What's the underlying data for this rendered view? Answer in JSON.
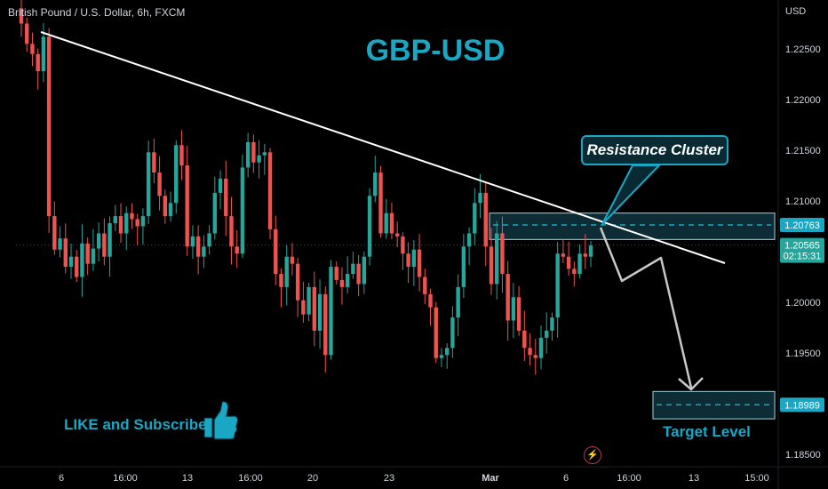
{
  "header": {
    "symbol_line": "British Pound / U.S. Dollar, 6h, FXCM",
    "currency": "USD"
  },
  "overlay": {
    "title": "GBP-USD",
    "callout": "Resistance Cluster",
    "like_text": "LIKE and Subscribe",
    "target_text": "Target Level"
  },
  "colors": {
    "up": "#26a69a",
    "down": "#ef5350",
    "accent": "#1aa7c4",
    "trend": "#ffffff",
    "projection": "#c8c8c8"
  },
  "chart_data": {
    "type": "candlestick",
    "y_axis": {
      "ticks": [
        "1.22500",
        "1.22000",
        "1.21500",
        "1.21000",
        "1.20000",
        "1.19500",
        "1.18500"
      ],
      "tick_values": [
        1.225,
        1.22,
        1.215,
        1.21,
        1.2,
        1.195,
        1.185
      ],
      "ylim": [
        1.1835,
        1.2305
      ]
    },
    "x_axis": {
      "ticks": [
        "6",
        "16:00",
        "13",
        "16:00",
        "20",
        "23",
        "Mar",
        "6",
        "16:00",
        "13",
        "15:00"
      ],
      "xlim": [
        0,
        100
      ]
    },
    "price_labels": [
      {
        "label": "1.20763",
        "value": 1.20763,
        "color": "#1aa7c4"
      },
      {
        "label": "1.20565",
        "sublabel": "02:15:31",
        "value": 1.20565,
        "color": "#26a69a"
      },
      {
        "label": "1.18989",
        "value": 1.18989,
        "color": "#1aa7c4"
      }
    ],
    "candles_ohlc_anchor_closes": [
      1.2275,
      1.2255,
      1.2245,
      1.2228,
      1.2262,
      1.2085,
      1.2052,
      1.2063,
      1.2035,
      1.2045,
      1.2025,
      1.2058,
      1.2038,
      1.2053,
      1.2068,
      1.2045,
      1.2078,
      1.2085,
      1.2068,
      1.2088,
      1.2082,
      1.2075,
      1.2085,
      1.2148,
      1.2128,
      1.2105,
      1.2085,
      1.2098,
      1.2155,
      1.2135,
      1.2055,
      1.2065,
      1.2045,
      1.2055,
      1.2068,
      1.2108,
      1.2122,
      1.2085,
      1.2055,
      1.2048,
      1.2133,
      1.2158,
      1.2138,
      1.2145,
      1.2148,
      1.2072,
      1.2028,
      1.2015,
      1.2045,
      1.2038,
      1.2002,
      1.1988,
      1.2015,
      1.1972,
      1.2008,
      1.1948,
      1.2035,
      1.2022,
      1.2015,
      1.2028,
      1.2038,
      1.2018,
      1.2045,
      1.2105,
      1.2128,
      1.2068,
      1.2088,
      1.2068,
      1.2065,
      1.2048,
      1.2035,
      1.2052,
      1.2025,
      1.2008,
      1.1995,
      1.1945,
      1.1948,
      1.1955,
      1.1985,
      1.2015,
      1.2055,
      1.2068,
      1.2098,
      1.2108,
      1.2055,
      1.2018,
      1.2068,
      1.2028,
      1.1982,
      1.2005,
      1.1972,
      1.1955,
      1.1948,
      1.1945,
      1.1965,
      1.1972,
      1.1985,
      1.2048,
      1.2045,
      1.2033,
      1.2028,
      1.2048,
      1.2045,
      1.2056
    ],
    "trendline": {
      "from": [
        1.2268
      ],
      "to": [
        1.204
      ]
    },
    "zones": [
      {
        "name": "resistance",
        "top": 1.2088,
        "bottom": 1.2062,
        "mid": 1.20763
      },
      {
        "name": "target",
        "top": 1.1912,
        "bottom": 1.1885,
        "mid": 1.18989
      }
    ],
    "projection_path": [
      1.2075,
      1.203,
      1.2055,
      1.1912
    ]
  }
}
